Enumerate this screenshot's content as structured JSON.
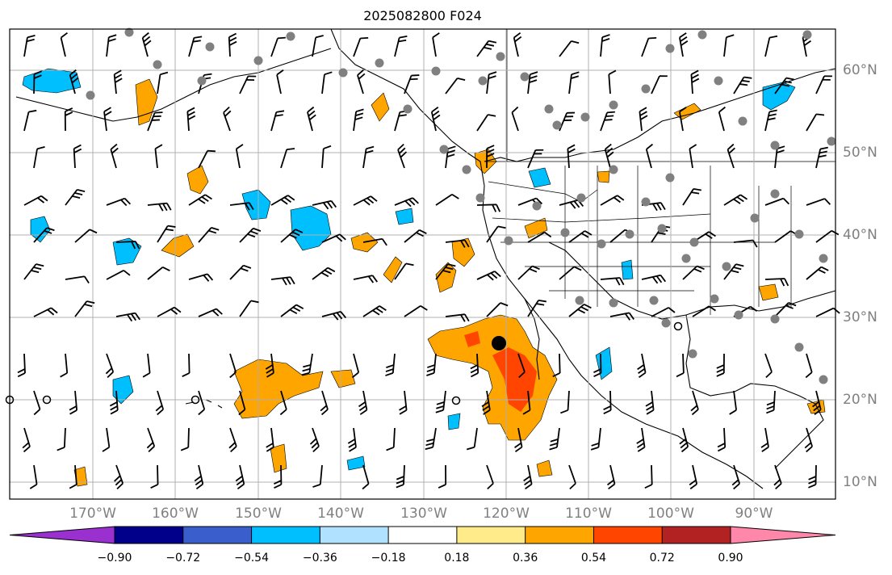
{
  "title": "2025082800 F024",
  "lon_labels": [
    "170°W",
    "160°W",
    "150°W",
    "140°W",
    "130°W",
    "120°W",
    "110°W",
    "100°W",
    "90°W"
  ],
  "lat_labels": [
    "60°N",
    "50°N",
    "40°N",
    "30°N",
    "20°N",
    "10°N"
  ],
  "colorbar": {
    "ticks": [
      "−0.90",
      "−0.72",
      "−0.54",
      "−0.36",
      "−0.18",
      "0.18",
      "0.36",
      "0.54",
      "0.72",
      "0.90"
    ],
    "colors": [
      "#9b30d0",
      "#00008b",
      "#3a5fcd",
      "#00bfff",
      "#b0e2ff",
      "#ffffff",
      "#ffeb8a",
      "#ffa500",
      "#ff4500",
      "#b22222",
      "#ff88aa"
    ]
  },
  "map": {
    "extent": {
      "lon": [
        -180,
        -80
      ],
      "lat": [
        8,
        65
      ]
    },
    "marker": {
      "lon": -121,
      "lat": 27
    }
  }
}
